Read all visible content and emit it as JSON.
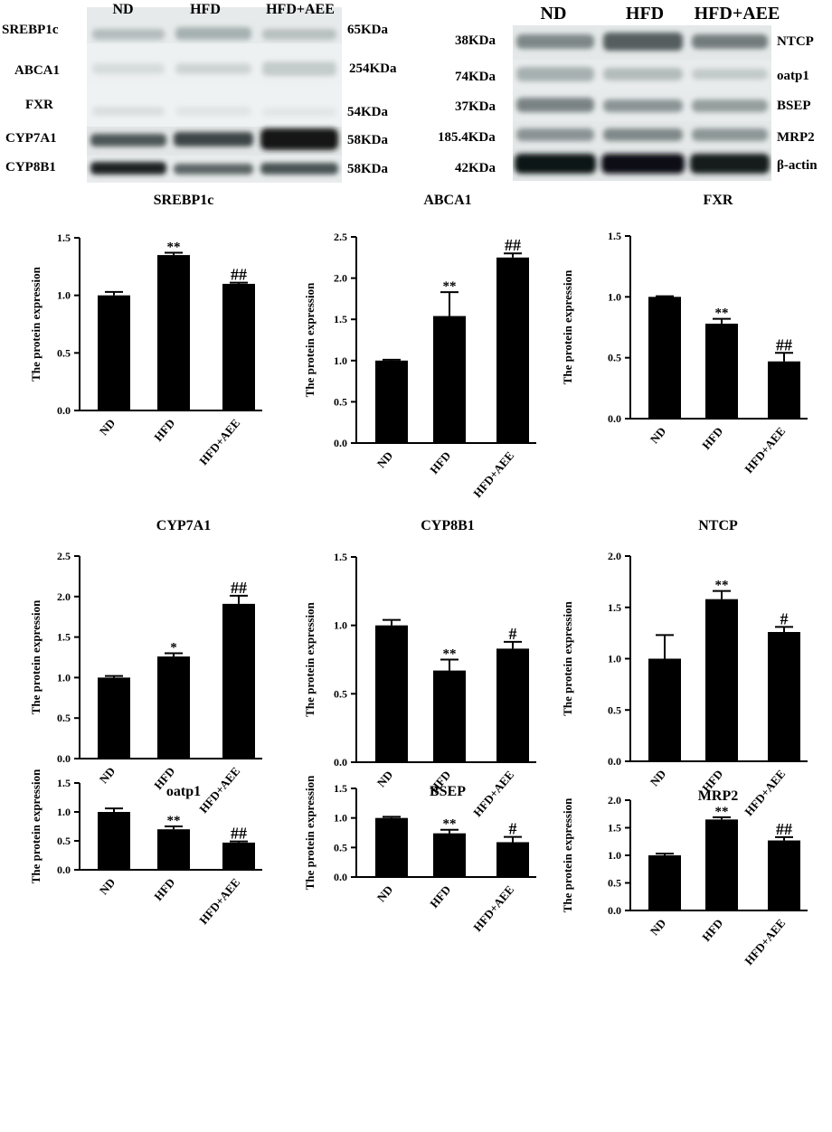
{
  "blots": [
    {
      "groups": [
        "ND",
        "HFD",
        "HFD+AEE"
      ],
      "rows": [
        {
          "protein": "SREBP1c",
          "size": "65KDa"
        },
        {
          "protein": "ABCA1",
          "size": "254KDa"
        },
        {
          "protein": "FXR",
          "size": "54KDa"
        },
        {
          "protein": "CYP7A1",
          "size": "58KDa"
        },
        {
          "protein": "CYP8B1",
          "size": "58KDa"
        }
      ]
    },
    {
      "groups": [
        "ND",
        "HFD",
        "HFD+AEE"
      ],
      "rows": [
        {
          "protein": "NTCP",
          "size": "38KDa"
        },
        {
          "protein": "oatp1",
          "size": "74KDa"
        },
        {
          "protein": "BSEP",
          "size": "37KDa"
        },
        {
          "protein": "MRP2",
          "size": "185.4KDa"
        },
        {
          "protein": "β-actin",
          "size": "42KDa"
        }
      ]
    }
  ],
  "chart_data": [
    {
      "type": "bar",
      "title": "SREBP1c",
      "ylabel": "The protein expression",
      "categories": [
        "ND",
        "HFD",
        "HFD+AEE"
      ],
      "values": [
        1.0,
        1.35,
        1.1
      ],
      "errors": [
        0.03,
        0.02,
        0.01
      ],
      "annotations": [
        "",
        "**",
        "##"
      ],
      "ylim": [
        0,
        1.5
      ],
      "yticks": [
        "0.0",
        "0.5",
        "1.0",
        "1.5"
      ]
    },
    {
      "type": "bar",
      "title": "ABCA1",
      "ylabel": "The protein expression",
      "categories": [
        "ND",
        "HFD",
        "HFD+AEE"
      ],
      "values": [
        1.0,
        1.54,
        2.25
      ],
      "errors": [
        0.01,
        0.29,
        0.05
      ],
      "annotations": [
        "",
        "**",
        "##"
      ],
      "ylim": [
        0,
        2.5
      ],
      "yticks": [
        "0.0",
        "0.5",
        "1.0",
        "1.5",
        "2.0",
        "2.5"
      ]
    },
    {
      "type": "bar",
      "title": "FXR",
      "ylabel": "The protein expression",
      "categories": [
        "ND",
        "HFD",
        "HFD+AEE"
      ],
      "values": [
        1.0,
        0.78,
        0.47
      ],
      "errors": [
        0.005,
        0.04,
        0.07
      ],
      "annotations": [
        "",
        "**",
        "##"
      ],
      "ylim": [
        0,
        1.5
      ],
      "yticks": [
        "0.0",
        "0.5",
        "1.0",
        "1.5"
      ]
    },
    {
      "type": "bar",
      "title": "CYP7A1",
      "ylabel": "The protein expression",
      "categories": [
        "ND",
        "HFD",
        "HFD+AEE"
      ],
      "values": [
        1.0,
        1.26,
        1.91
      ],
      "errors": [
        0.02,
        0.04,
        0.1
      ],
      "annotations": [
        "",
        "*",
        "##"
      ],
      "ylim": [
        0,
        2.5
      ],
      "yticks": [
        "0.0",
        "0.5",
        "1.0",
        "1.5",
        "2.0",
        "2.5"
      ]
    },
    {
      "type": "bar",
      "title": "CYP8B1",
      "ylabel": "The protein expression",
      "categories": [
        "ND",
        "HFD",
        "HFD+AEE"
      ],
      "values": [
        1.0,
        0.67,
        0.83
      ],
      "errors": [
        0.04,
        0.08,
        0.05
      ],
      "annotations": [
        "",
        "**",
        "#"
      ],
      "ylim": [
        0,
        1.5
      ],
      "yticks": [
        "0.0",
        "0.5",
        "1.0",
        "1.5"
      ]
    },
    {
      "type": "bar",
      "title": "NTCP",
      "ylabel": "The protein expression",
      "categories": [
        "ND",
        "HFD",
        "HFD+AEE"
      ],
      "values": [
        1.0,
        1.58,
        1.26
      ],
      "errors": [
        0.23,
        0.08,
        0.05
      ],
      "annotations": [
        "",
        "**",
        "#"
      ],
      "ylim": [
        0,
        2.0
      ],
      "yticks": [
        "0.0",
        "0.5",
        "1.0",
        "1.5",
        "2.0"
      ]
    },
    {
      "type": "bar",
      "title": "oatp1",
      "ylabel": "The protein expression",
      "categories": [
        "ND",
        "HFD",
        "HFD+AEE"
      ],
      "values": [
        1.0,
        0.7,
        0.47
      ],
      "errors": [
        0.06,
        0.05,
        0.02
      ],
      "annotations": [
        "",
        "**",
        "##"
      ],
      "ylim": [
        0,
        1.5
      ],
      "yticks": [
        "0.0",
        "0.5",
        "1.0",
        "1.5"
      ]
    },
    {
      "type": "bar",
      "title": "BSEP",
      "ylabel": "The protein expression",
      "categories": [
        "ND",
        "HFD",
        "HFD+AEE"
      ],
      "values": [
        1.0,
        0.74,
        0.59
      ],
      "errors": [
        0.02,
        0.06,
        0.09
      ],
      "annotations": [
        "",
        "**",
        "#"
      ],
      "ylim": [
        0,
        1.5
      ],
      "yticks": [
        "0.0",
        "0.5",
        "1.0",
        "1.5"
      ]
    },
    {
      "type": "bar",
      "title": "MRP2",
      "ylabel": "The protein expression",
      "categories": [
        "ND",
        "HFD",
        "HFD+AEE"
      ],
      "values": [
        1.0,
        1.65,
        1.27
      ],
      "errors": [
        0.03,
        0.04,
        0.06
      ],
      "annotations": [
        "",
        "**",
        "##"
      ],
      "ylim": [
        0,
        2.0
      ],
      "yticks": [
        "0.0",
        "0.5",
        "1.0",
        "1.5",
        "2.0"
      ]
    }
  ]
}
